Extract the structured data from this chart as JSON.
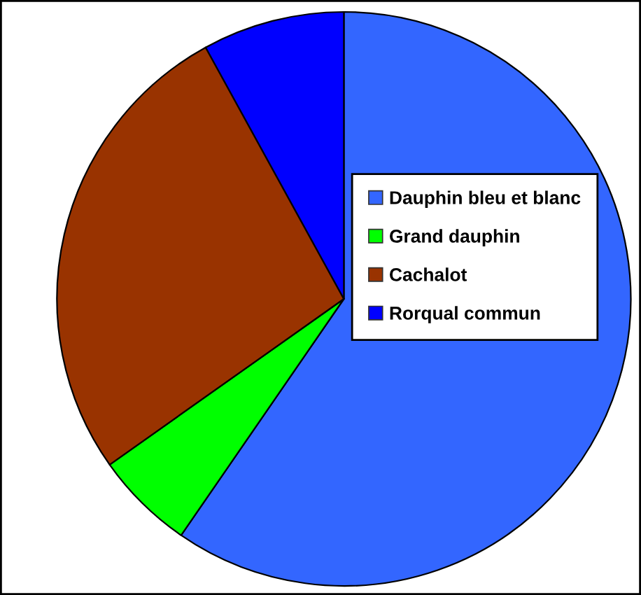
{
  "chart_data": {
    "type": "pie",
    "categories": [
      "Dauphin bleu et blanc",
      "Grand dauphin",
      "Cachalot",
      "Rorqual commun"
    ],
    "values": [
      59.6,
      5.6,
      26.8,
      8.0
    ],
    "colors": [
      "#3366ff",
      "#00ff00",
      "#993300",
      "#0000ff"
    ],
    "legend": "right"
  }
}
